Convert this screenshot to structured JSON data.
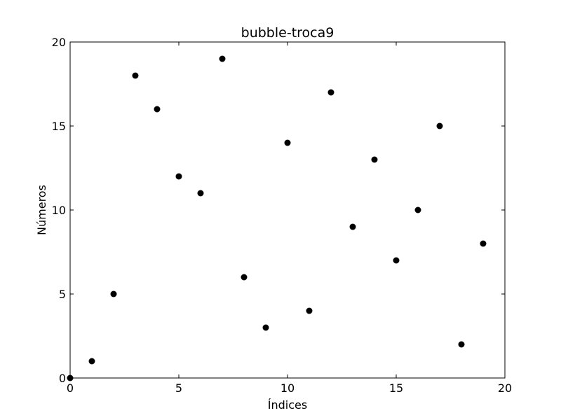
{
  "chart_data": {
    "type": "scatter",
    "title": "bubble-troca9",
    "xlabel": "Índices",
    "ylabel": "Números",
    "xlim": [
      0,
      20
    ],
    "ylim": [
      0,
      20
    ],
    "xticks": [
      0,
      5,
      10,
      15,
      20
    ],
    "yticks": [
      0,
      5,
      10,
      15,
      20
    ],
    "grid": false,
    "marker_color": "#000000",
    "x": [
      0,
      1,
      2,
      3,
      4,
      5,
      6,
      7,
      8,
      9,
      10,
      11,
      12,
      13,
      14,
      15,
      16,
      17,
      18,
      19
    ],
    "y": [
      0,
      1,
      5,
      18,
      16,
      12,
      11,
      19,
      6,
      3,
      14,
      4,
      17,
      9,
      13,
      7,
      10,
      15,
      2,
      8
    ]
  }
}
